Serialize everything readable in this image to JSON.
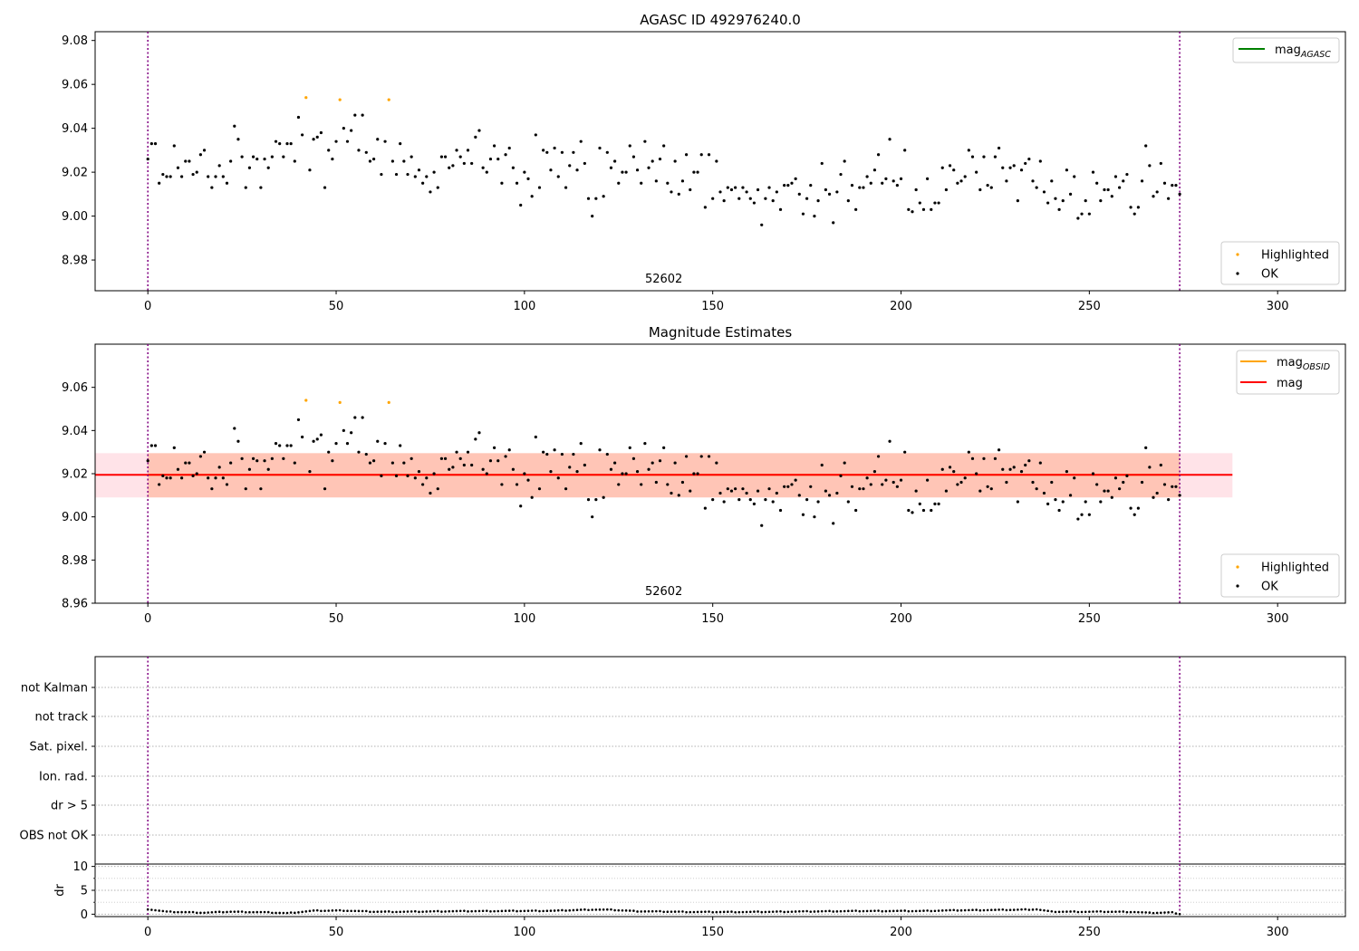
{
  "figure": {
    "top_title": "AGASC ID 492976240.0",
    "middle_title": "Magnitude Estimates",
    "obsid_label": "52602"
  },
  "colors": {
    "ok": "#000000",
    "highlighted": "#ffa500",
    "mag_agasc": "#008000",
    "mag_obsid": "#ffa500",
    "mag": "#ff0000",
    "obs_boundary": "#800080",
    "band_obsid": "#ffa07a",
    "band_mag": "#ffc0cb"
  },
  "legend": {
    "mag_agasc": {
      "base": "mag",
      "sub": "AGASC"
    },
    "mag_obsid": {
      "base": "mag",
      "sub": "OBSID"
    },
    "mag": "mag",
    "highlighted": "Highlighted",
    "ok": "OK"
  },
  "chart_data": [
    {
      "type": "scatter",
      "title": "AGASC ID 492976240.0",
      "xlim": [
        -14,
        318
      ],
      "ylim": [
        8.966,
        9.084
      ],
      "xticks": [
        0,
        50,
        100,
        150,
        200,
        250,
        300
      ],
      "yticks": [
        "8.98",
        "9.00",
        "9.02",
        "9.04",
        "9.06",
        "9.08"
      ],
      "obs_boundaries": [
        0,
        274
      ],
      "annotation": "52602",
      "legend_lines": [
        "mag_AGASC"
      ],
      "legend_points": [
        "Highlighted",
        "OK"
      ],
      "highlighted_points": [
        [
          42,
          9.054
        ],
        [
          51,
          9.053
        ],
        [
          64,
          9.053
        ]
      ]
    },
    {
      "type": "scatter",
      "title": "Magnitude Estimates",
      "xlim": [
        -14,
        318
      ],
      "ylim": [
        8.96,
        9.08
      ],
      "xticks": [
        0,
        50,
        100,
        150,
        200,
        250,
        300
      ],
      "yticks": [
        "8.96",
        "8.98",
        "9.00",
        "9.02",
        "9.04",
        "9.06"
      ],
      "obs_boundaries": [
        0,
        274
      ],
      "annotation": "52602",
      "mag": 9.0195,
      "mag_band": [
        9.009,
        9.0295
      ],
      "mag_band_x": [
        -14,
        288
      ],
      "mag_obsid": 9.0195,
      "obsid_band": [
        9.009,
        9.0295
      ],
      "obsid_band_x": [
        0,
        274
      ],
      "legend_lines": [
        "mag_OBSID",
        "mag"
      ],
      "legend_points": [
        "Highlighted",
        "OK"
      ],
      "highlighted_points": [
        [
          42,
          9.054
        ],
        [
          51,
          9.053
        ],
        [
          64,
          9.053
        ]
      ]
    },
    {
      "type": "scatter",
      "title": "",
      "flag_categories": [
        "not Kalman",
        "not track",
        "Sat. pixel.",
        "Ion. rad.",
        "dr > 5",
        "OBS not OK"
      ],
      "flagged_points": [],
      "obs_boundaries": [
        0,
        274
      ]
    },
    {
      "type": "scatter",
      "ylabel": "dr",
      "xlim": [
        -14,
        318
      ],
      "ylim": [
        -0.5,
        10.5
      ],
      "xticks": [
        0,
        50,
        100,
        150,
        200,
        250,
        300
      ],
      "yticks": [
        "0",
        "5",
        "10"
      ],
      "obs_boundaries": [
        0,
        274
      ],
      "dr_profile": [
        [
          0,
          1.0
        ],
        [
          5,
          0.45
        ],
        [
          15,
          0.25
        ],
        [
          22,
          0.45
        ],
        [
          30,
          0.35
        ],
        [
          37,
          0.15
        ],
        [
          44,
          0.65
        ],
        [
          52,
          0.7
        ],
        [
          60,
          0.45
        ],
        [
          70,
          0.45
        ],
        [
          80,
          0.55
        ],
        [
          95,
          0.6
        ],
        [
          108,
          0.65
        ],
        [
          118,
          0.9
        ],
        [
          123,
          0.85
        ],
        [
          130,
          0.55
        ],
        [
          145,
          0.4
        ],
        [
          160,
          0.4
        ],
        [
          175,
          0.5
        ],
        [
          190,
          0.6
        ],
        [
          205,
          0.6
        ],
        [
          215,
          0.75
        ],
        [
          230,
          0.85
        ],
        [
          236,
          0.95
        ],
        [
          240,
          0.45
        ],
        [
          255,
          0.45
        ],
        [
          262,
          0.4
        ],
        [
          266,
          0.2
        ],
        [
          272,
          0.3
        ],
        [
          274,
          0.0
        ]
      ]
    }
  ],
  "ok_series_points": [
    [
      0,
      9.026
    ],
    [
      1,
      9.033
    ],
    [
      2,
      9.033
    ],
    [
      3,
      9.015
    ],
    [
      4,
      9.019
    ],
    [
      5,
      9.018
    ],
    [
      6,
      9.018
    ],
    [
      7,
      9.032
    ],
    [
      8,
      9.022
    ],
    [
      9,
      9.018
    ],
    [
      10,
      9.025
    ],
    [
      11,
      9.025
    ],
    [
      12,
      9.019
    ],
    [
      13,
      9.02
    ],
    [
      14,
      9.028
    ],
    [
      15,
      9.03
    ],
    [
      16,
      9.018
    ],
    [
      17,
      9.013
    ],
    [
      18,
      9.018
    ],
    [
      19,
      9.023
    ],
    [
      20,
      9.018
    ],
    [
      21,
      9.015
    ],
    [
      22,
      9.025
    ],
    [
      23,
      9.041
    ],
    [
      24,
      9.035
    ],
    [
      25,
      9.027
    ],
    [
      26,
      9.013
    ],
    [
      27,
      9.022
    ],
    [
      28,
      9.027
    ],
    [
      29,
      9.026
    ],
    [
      30,
      9.013
    ],
    [
      31,
      9.026
    ],
    [
      32,
      9.022
    ],
    [
      33,
      9.027
    ],
    [
      34,
      9.034
    ],
    [
      35,
      9.033
    ],
    [
      36,
      9.027
    ],
    [
      37,
      9.033
    ],
    [
      38,
      9.033
    ],
    [
      39,
      9.025
    ],
    [
      40,
      9.045
    ],
    [
      41,
      9.037
    ],
    [
      43,
      9.021
    ],
    [
      44,
      9.035
    ],
    [
      45,
      9.036
    ],
    [
      46,
      9.038
    ],
    [
      47,
      9.013
    ],
    [
      48,
      9.03
    ],
    [
      49,
      9.026
    ],
    [
      50,
      9.034
    ],
    [
      52,
      9.04
    ],
    [
      53,
      9.034
    ],
    [
      54,
      9.039
    ],
    [
      55,
      9.046
    ],
    [
      56,
      9.03
    ],
    [
      57,
      9.046
    ],
    [
      58,
      9.029
    ],
    [
      59,
      9.025
    ],
    [
      60,
      9.026
    ],
    [
      61,
      9.035
    ],
    [
      62,
      9.019
    ],
    [
      63,
      9.034
    ],
    [
      65,
      9.025
    ],
    [
      66,
      9.019
    ],
    [
      67,
      9.033
    ],
    [
      68,
      9.025
    ],
    [
      69,
      9.019
    ],
    [
      70,
      9.027
    ],
    [
      71,
      9.018
    ],
    [
      72,
      9.021
    ],
    [
      73,
      9.015
    ],
    [
      74,
      9.018
    ],
    [
      75,
      9.011
    ],
    [
      76,
      9.02
    ],
    [
      77,
      9.013
    ],
    [
      78,
      9.027
    ],
    [
      79,
      9.027
    ],
    [
      80,
      9.022
    ],
    [
      81,
      9.023
    ],
    [
      82,
      9.03
    ],
    [
      83,
      9.027
    ],
    [
      84,
      9.024
    ],
    [
      85,
      9.03
    ],
    [
      86,
      9.024
    ],
    [
      87,
      9.036
    ],
    [
      88,
      9.039
    ],
    [
      89,
      9.022
    ],
    [
      90,
      9.02
    ],
    [
      91,
      9.026
    ],
    [
      92,
      9.032
    ],
    [
      93,
      9.026
    ],
    [
      94,
      9.015
    ],
    [
      95,
      9.028
    ],
    [
      96,
      9.031
    ],
    [
      97,
      9.022
    ],
    [
      98,
      9.015
    ],
    [
      99,
      9.005
    ],
    [
      100,
      9.02
    ],
    [
      101,
      9.017
    ],
    [
      102,
      9.009
    ],
    [
      103,
      9.037
    ],
    [
      104,
      9.013
    ],
    [
      105,
      9.03
    ],
    [
      106,
      9.029
    ],
    [
      107,
      9.021
    ],
    [
      108,
      9.031
    ],
    [
      109,
      9.018
    ],
    [
      110,
      9.029
    ],
    [
      111,
      9.013
    ],
    [
      112,
      9.023
    ],
    [
      113,
      9.029
    ],
    [
      114,
      9.021
    ],
    [
      115,
      9.034
    ],
    [
      116,
      9.024
    ],
    [
      117,
      9.008
    ],
    [
      118,
      9.0
    ],
    [
      119,
      9.008
    ],
    [
      120,
      9.031
    ],
    [
      121,
      9.009
    ],
    [
      122,
      9.029
    ],
    [
      123,
      9.022
    ],
    [
      124,
      9.025
    ],
    [
      125,
      9.015
    ],
    [
      126,
      9.02
    ],
    [
      127,
      9.02
    ],
    [
      128,
      9.032
    ],
    [
      129,
      9.027
    ],
    [
      130,
      9.021
    ],
    [
      131,
      9.015
    ],
    [
      132,
      9.034
    ],
    [
      133,
      9.022
    ],
    [
      134,
      9.025
    ],
    [
      135,
      9.016
    ],
    [
      136,
      9.026
    ],
    [
      137,
      9.032
    ],
    [
      138,
      9.015
    ],
    [
      139,
      9.011
    ],
    [
      140,
      9.025
    ],
    [
      141,
      9.01
    ],
    [
      142,
      9.016
    ],
    [
      143,
      9.028
    ],
    [
      144,
      9.012
    ],
    [
      145,
      9.02
    ],
    [
      146,
      9.02
    ],
    [
      147,
      9.028
    ],
    [
      148,
      9.004
    ],
    [
      149,
      9.028
    ],
    [
      150,
      9.008
    ],
    [
      151,
      9.025
    ],
    [
      152,
      9.011
    ],
    [
      153,
      9.007
    ],
    [
      154,
      9.013
    ],
    [
      155,
      9.012
    ],
    [
      156,
      9.013
    ],
    [
      157,
      9.008
    ],
    [
      158,
      9.013
    ],
    [
      159,
      9.011
    ],
    [
      160,
      9.008
    ],
    [
      161,
      9.006
    ],
    [
      162,
      9.012
    ],
    [
      163,
      8.996
    ],
    [
      164,
      9.008
    ],
    [
      165,
      9.013
    ],
    [
      166,
      9.007
    ],
    [
      167,
      9.011
    ],
    [
      168,
      9.003
    ],
    [
      169,
      9.014
    ],
    [
      170,
      9.014
    ],
    [
      171,
      9.015
    ],
    [
      172,
      9.017
    ],
    [
      173,
      9.01
    ],
    [
      174,
      9.001
    ],
    [
      175,
      9.008
    ],
    [
      176,
      9.014
    ],
    [
      177,
      9.0
    ],
    [
      178,
      9.007
    ],
    [
      179,
      9.024
    ],
    [
      180,
      9.012
    ],
    [
      181,
      9.01
    ],
    [
      182,
      8.997
    ],
    [
      183,
      9.011
    ],
    [
      184,
      9.019
    ],
    [
      185,
      9.025
    ],
    [
      186,
      9.007
    ],
    [
      187,
      9.014
    ],
    [
      188,
      9.003
    ],
    [
      189,
      9.013
    ],
    [
      190,
      9.013
    ],
    [
      191,
      9.018
    ],
    [
      192,
      9.015
    ],
    [
      193,
      9.021
    ],
    [
      194,
      9.028
    ],
    [
      195,
      9.015
    ],
    [
      196,
      9.017
    ],
    [
      197,
      9.035
    ],
    [
      198,
      9.016
    ],
    [
      199,
      9.014
    ],
    [
      200,
      9.017
    ],
    [
      201,
      9.03
    ],
    [
      202,
      9.003
    ],
    [
      203,
      9.002
    ],
    [
      204,
      9.012
    ],
    [
      205,
      9.006
    ],
    [
      206,
      9.003
    ],
    [
      207,
      9.017
    ],
    [
      208,
      9.003
    ],
    [
      209,
      9.006
    ],
    [
      210,
      9.006
    ],
    [
      211,
      9.022
    ],
    [
      212,
      9.012
    ],
    [
      213,
      9.023
    ],
    [
      214,
      9.021
    ],
    [
      215,
      9.015
    ],
    [
      216,
      9.016
    ],
    [
      217,
      9.018
    ],
    [
      218,
      9.03
    ],
    [
      219,
      9.027
    ],
    [
      220,
      9.02
    ],
    [
      221,
      9.012
    ],
    [
      222,
      9.027
    ],
    [
      223,
      9.014
    ],
    [
      224,
      9.013
    ],
    [
      225,
      9.027
    ],
    [
      226,
      9.031
    ],
    [
      227,
      9.022
    ],
    [
      228,
      9.016
    ],
    [
      229,
      9.022
    ],
    [
      230,
      9.023
    ],
    [
      231,
      9.007
    ],
    [
      232,
      9.021
    ],
    [
      233,
      9.024
    ],
    [
      234,
      9.026
    ],
    [
      235,
      9.016
    ],
    [
      236,
      9.013
    ],
    [
      237,
      9.025
    ],
    [
      238,
      9.011
    ],
    [
      239,
      9.006
    ],
    [
      240,
      9.016
    ],
    [
      241,
      9.008
    ],
    [
      242,
      9.003
    ],
    [
      243,
      9.007
    ],
    [
      244,
      9.021
    ],
    [
      245,
      9.01
    ],
    [
      246,
      9.018
    ],
    [
      247,
      8.999
    ],
    [
      248,
      9.001
    ],
    [
      249,
      9.007
    ],
    [
      250,
      9.001
    ],
    [
      251,
      9.02
    ],
    [
      252,
      9.015
    ],
    [
      253,
      9.007
    ],
    [
      254,
      9.012
    ],
    [
      255,
      9.012
    ],
    [
      256,
      9.009
    ],
    [
      257,
      9.018
    ],
    [
      258,
      9.013
    ],
    [
      259,
      9.016
    ],
    [
      260,
      9.019
    ],
    [
      261,
      9.004
    ],
    [
      262,
      9.001
    ],
    [
      263,
      9.004
    ],
    [
      264,
      9.016
    ],
    [
      265,
      9.032
    ],
    [
      266,
      9.023
    ],
    [
      267,
      9.009
    ],
    [
      268,
      9.011
    ],
    [
      269,
      9.024
    ],
    [
      270,
      9.015
    ],
    [
      271,
      9.008
    ],
    [
      272,
      9.014
    ],
    [
      273,
      9.014
    ],
    [
      274,
      9.01
    ]
  ]
}
